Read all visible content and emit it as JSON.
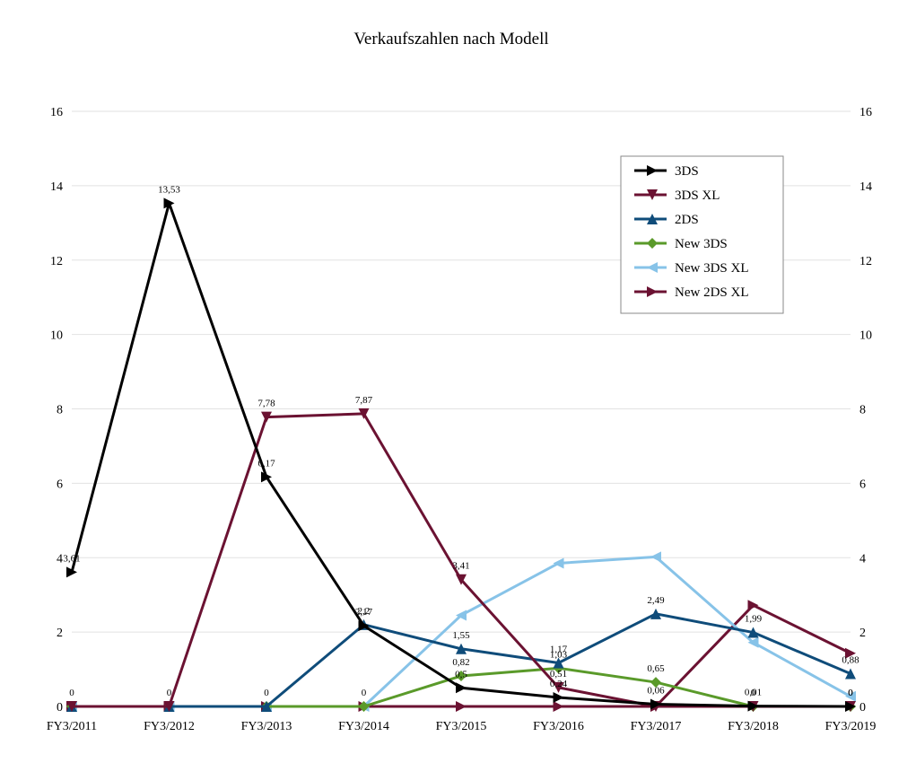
{
  "chart_data": {
    "type": "line",
    "title": "Verkaufszahlen nach Modell",
    "categories": [
      "FY3/2011",
      "FY3/2012",
      "FY3/2013",
      "FY3/2014",
      "FY3/2015",
      "FY3/2016",
      "FY3/2017",
      "FY3/2018",
      "FY3/2019"
    ],
    "ylim": [
      0,
      16
    ],
    "yticks": [
      "0",
      "2",
      "4",
      "6",
      "8",
      "10",
      "12",
      "14",
      "16"
    ],
    "legend_position": "top-right",
    "grid": true,
    "series": [
      {
        "name": "3DS",
        "color": "#000000",
        "marker": "triangle-right",
        "values": [
          3.61,
          13.53,
          6.17,
          2.17,
          0.5,
          0.24,
          0.06,
          0.01,
          0
        ],
        "labels": [
          "3,61",
          "13,53",
          "6,17",
          "2,17",
          "0,5",
          "0,24",
          "0,06",
          "0,01",
          "0"
        ]
      },
      {
        "name": "3DS XL",
        "color": "#6b1232",
        "marker": "triangle-down",
        "values": [
          0,
          0,
          7.78,
          7.87,
          3.41,
          0.51,
          0,
          0,
          0
        ],
        "labels": [
          "0",
          "0",
          "7,78",
          "7,87",
          "3,41",
          "0,51",
          "",
          "",
          ""
        ]
      },
      {
        "name": "2DS",
        "color": "#0f4c7a",
        "marker": "triangle-up",
        "values": [
          0,
          0,
          0,
          2.2,
          1.55,
          1.17,
          2.49,
          1.99,
          0.88
        ],
        "labels": [
          "",
          "",
          "0",
          "2,2",
          "1,55",
          "1,17",
          "2,49",
          "1,99",
          "0,88"
        ]
      },
      {
        "name": "New 3DS",
        "color": "#5a9a2a",
        "marker": "diamond",
        "values": [
          0,
          0,
          0,
          0,
          0.82,
          1.03,
          0.65,
          0,
          0
        ],
        "labels": [
          "",
          "",
          "",
          "0",
          "0,82",
          "1,03",
          "0,65",
          "0",
          "0"
        ]
      },
      {
        "name": "New 3DS XL",
        "color": "#87c3e8",
        "marker": "triangle-left",
        "values": [
          0,
          0,
          0,
          0,
          2.45,
          3.85,
          4.02,
          1.72,
          0.27
        ],
        "labels": [
          "",
          "",
          "",
          "",
          "",
          "",
          "",
          "",
          ""
        ]
      },
      {
        "name": "New 2DS XL",
        "color": "#6b1232",
        "marker": "triangle-right",
        "values": [
          0,
          0,
          0,
          0,
          0,
          0,
          0,
          2.72,
          1.43
        ],
        "labels": [
          "",
          "",
          "",
          "",
          "",
          "",
          "",
          "",
          ""
        ]
      }
    ]
  }
}
